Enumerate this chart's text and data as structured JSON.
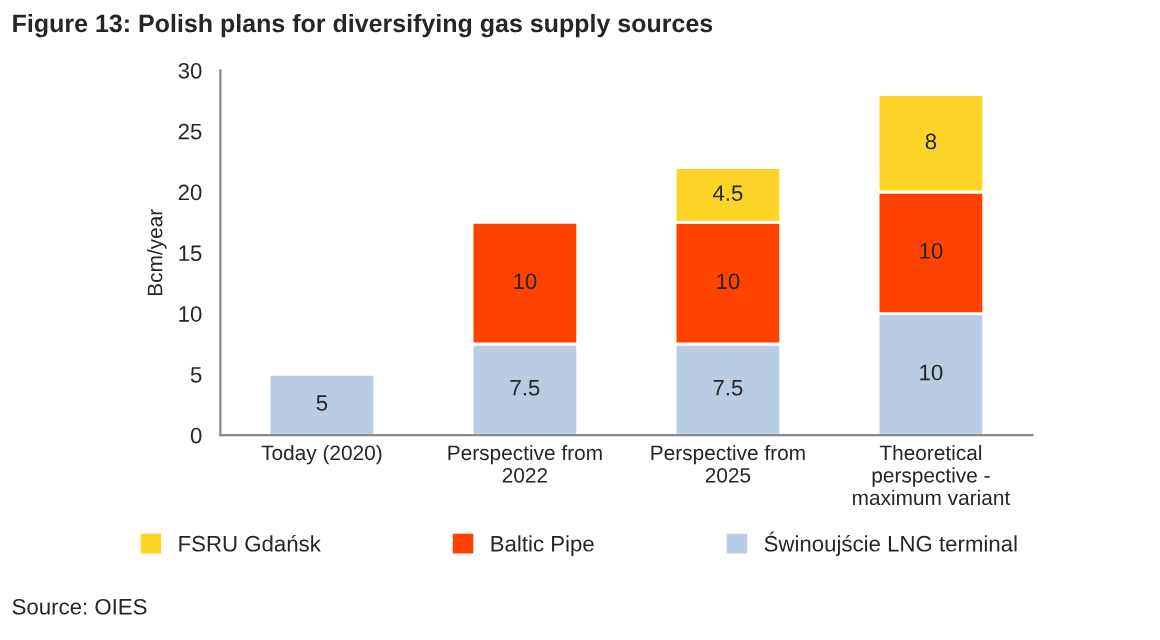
{
  "chart_data": {
    "type": "bar",
    "title": "Figure 13: Polish plans for diversifying gas supply sources",
    "ylabel": "Bcm/year",
    "categories": [
      "Today (2020)",
      "Perspective from\n2022",
      "Perspective from\n2025",
      "Theoretical\nperspective -\nmaximum variant"
    ],
    "stacked": true,
    "series": [
      {
        "name": "Świnoujście LNG terminal",
        "color": "#b8cce4",
        "values": [
          5,
          7.5,
          7.5,
          10
        ]
      },
      {
        "name": "Baltic Pipe",
        "color": "#ff4200",
        "values": [
          null,
          10,
          10,
          10
        ]
      },
      {
        "name": "FSRU Gdańsk",
        "color": "#ffd428",
        "values": [
          null,
          null,
          4.5,
          8
        ]
      }
    ],
    "ylim": [
      0,
      30
    ],
    "yticks": [
      0,
      5,
      10,
      15,
      20,
      25,
      30
    ],
    "data_labels": true,
    "legend": "bottom",
    "grid": false,
    "annotations": [
      "Source: OIES"
    ]
  }
}
